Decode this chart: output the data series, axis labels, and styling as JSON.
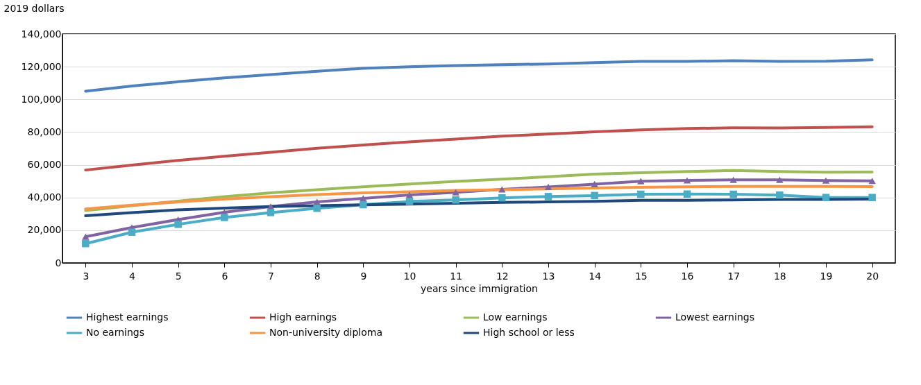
{
  "chart_data": {
    "type": "line",
    "ylabel": "2019 dollars",
    "xlabel": "years since immigration",
    "categories": [
      "3",
      "4",
      "5",
      "6",
      "7",
      "8",
      "9",
      "10",
      "11",
      "12",
      "13",
      "14",
      "15",
      "16",
      "17",
      "18",
      "19",
      "20"
    ],
    "ylim": [
      0,
      140000
    ],
    "yticks": [
      {
        "value": 0,
        "label": "0"
      },
      {
        "value": 20000,
        "label": "20,000"
      },
      {
        "value": 40000,
        "label": "40,000"
      },
      {
        "value": 60000,
        "label": "60,000"
      },
      {
        "value": 80000,
        "label": "80,000"
      },
      {
        "value": 100000,
        "label": "100,000"
      },
      {
        "value": 120000,
        "label": "120,000"
      },
      {
        "value": 140000,
        "label": "140,000"
      }
    ],
    "grid": "y",
    "legend": "bottom",
    "marker": "none",
    "line_style": "solid",
    "series": [
      {
        "name": "Highest earnings",
        "color": "#4f81bd",
        "values": [
          105000,
          108200,
          110800,
          113200,
          115200,
          117200,
          119000,
          120000,
          120700,
          121200,
          121700,
          122500,
          123200,
          123200,
          123700,
          123200,
          123300,
          124200
        ]
      },
      {
        "name": "High earnings",
        "color": "#c0504d",
        "values": [
          56800,
          59800,
          62700,
          65200,
          67700,
          70100,
          72100,
          74000,
          75700,
          77500,
          78800,
          80200,
          81300,
          82200,
          82600,
          82500,
          82800,
          83300
        ]
      },
      {
        "name": "Low earnings",
        "color": "#9bbb59",
        "values": [
          32000,
          35000,
          37800,
          40500,
          42800,
          44800,
          46600,
          48300,
          49800,
          51200,
          52700,
          54300,
          55200,
          55900,
          56500,
          55900,
          55500,
          55600
        ]
      },
      {
        "name": "Lowest earnings",
        "color": "#8064a2",
        "marker": "triangle",
        "values": [
          16000,
          21600,
          26500,
          31000,
          34500,
          37300,
          39500,
          41600,
          43200,
          45000,
          46500,
          48200,
          50000,
          50500,
          50800,
          50800,
          50400,
          50200
        ]
      },
      {
        "name": "No earnings",
        "color": "#4bacc6",
        "marker": "square",
        "values": [
          11800,
          18800,
          23600,
          27800,
          30800,
          33400,
          35600,
          37600,
          38500,
          39800,
          40600,
          41200,
          42000,
          42100,
          42000,
          41500,
          40000,
          40000
        ]
      },
      {
        "name": "Non-university diploma",
        "color": "#f79646",
        "values": [
          33000,
          35300,
          37300,
          39000,
          40500,
          41800,
          42800,
          43500,
          44300,
          44800,
          45300,
          45800,
          46200,
          46600,
          46800,
          46800,
          46800,
          46700
        ]
      },
      {
        "name": "High school or less",
        "color": "#1f497d",
        "values": [
          28800,
          30800,
          32500,
          33500,
          34500,
          35000,
          35500,
          36000,
          36500,
          37000,
          37300,
          37700,
          38300,
          38300,
          38500,
          38800,
          38800,
          39000
        ]
      }
    ]
  }
}
